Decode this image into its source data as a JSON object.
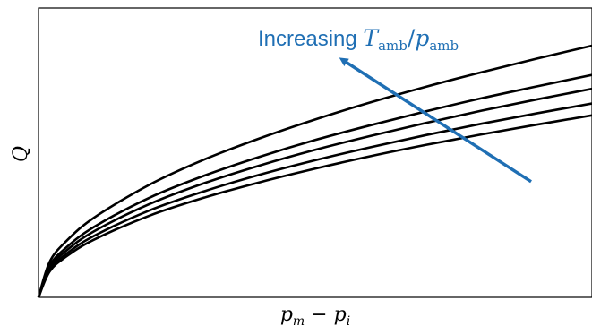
{
  "chart_data": {
    "type": "line",
    "title": "",
    "xlabel": "p_m − p_i",
    "xlabel_parts": {
      "base1": "p",
      "sub1": "m",
      "op": " − ",
      "base2": "p",
      "sub2": "i"
    },
    "ylabel": "Q",
    "xlim": [
      0,
      1
    ],
    "ylim": [
      0,
      1
    ],
    "grid": false,
    "legend": "none",
    "tick_labels": "none",
    "series": [
      {
        "x": [
          0,
          0.02,
          0.05,
          0.1,
          0.2,
          0.3,
          0.4,
          0.5,
          0.6,
          0.7,
          0.8,
          0.9,
          1.0
        ],
        "y": [
          0,
          0.122,
          0.194,
          0.275,
          0.389,
          0.477,
          0.55,
          0.615,
          0.674,
          0.728,
          0.778,
          0.825,
          0.87
        ]
      },
      {
        "x": [
          0,
          0.02,
          0.05,
          0.1,
          0.2,
          0.3,
          0.4,
          0.5,
          0.6,
          0.7,
          0.8,
          0.9,
          1.0
        ],
        "y": [
          0,
          0.109,
          0.172,
          0.243,
          0.344,
          0.421,
          0.486,
          0.544,
          0.595,
          0.643,
          0.688,
          0.729,
          0.769
        ]
      },
      {
        "x": [
          0,
          0.02,
          0.05,
          0.1,
          0.2,
          0.3,
          0.4,
          0.5,
          0.6,
          0.7,
          0.8,
          0.9,
          1.0
        ],
        "y": [
          0,
          0.102,
          0.161,
          0.228,
          0.322,
          0.395,
          0.456,
          0.51,
          0.558,
          0.603,
          0.645,
          0.684,
          0.721
        ]
      },
      {
        "x": [
          0,
          0.02,
          0.05,
          0.1,
          0.2,
          0.3,
          0.4,
          0.5,
          0.6,
          0.7,
          0.8,
          0.9,
          1.0
        ],
        "y": [
          0,
          0.095,
          0.15,
          0.212,
          0.3,
          0.367,
          0.424,
          0.474,
          0.519,
          0.561,
          0.6,
          0.636,
          0.67
        ]
      },
      {
        "x": [
          0,
          0.02,
          0.05,
          0.1,
          0.2,
          0.3,
          0.4,
          0.5,
          0.6,
          0.7,
          0.8,
          0.9,
          1.0
        ],
        "y": [
          0,
          0.089,
          0.141,
          0.199,
          0.282,
          0.345,
          0.398,
          0.445,
          0.488,
          0.527,
          0.563,
          0.597,
          0.629
        ]
      }
    ],
    "annotation": {
      "text": "Increasing ",
      "math_parts": {
        "base1": "T",
        "sub1": "amb",
        "sep": "/",
        "base2": "p",
        "sub2": "amb"
      },
      "color": "#1f6fb4",
      "arrow": {
        "from": [
          0.89,
          0.4
        ],
        "to": [
          0.55,
          0.82
        ]
      }
    },
    "colors": {
      "lines": "#000000",
      "annotation": "#1f6fb4",
      "axes": "#000000"
    }
  }
}
